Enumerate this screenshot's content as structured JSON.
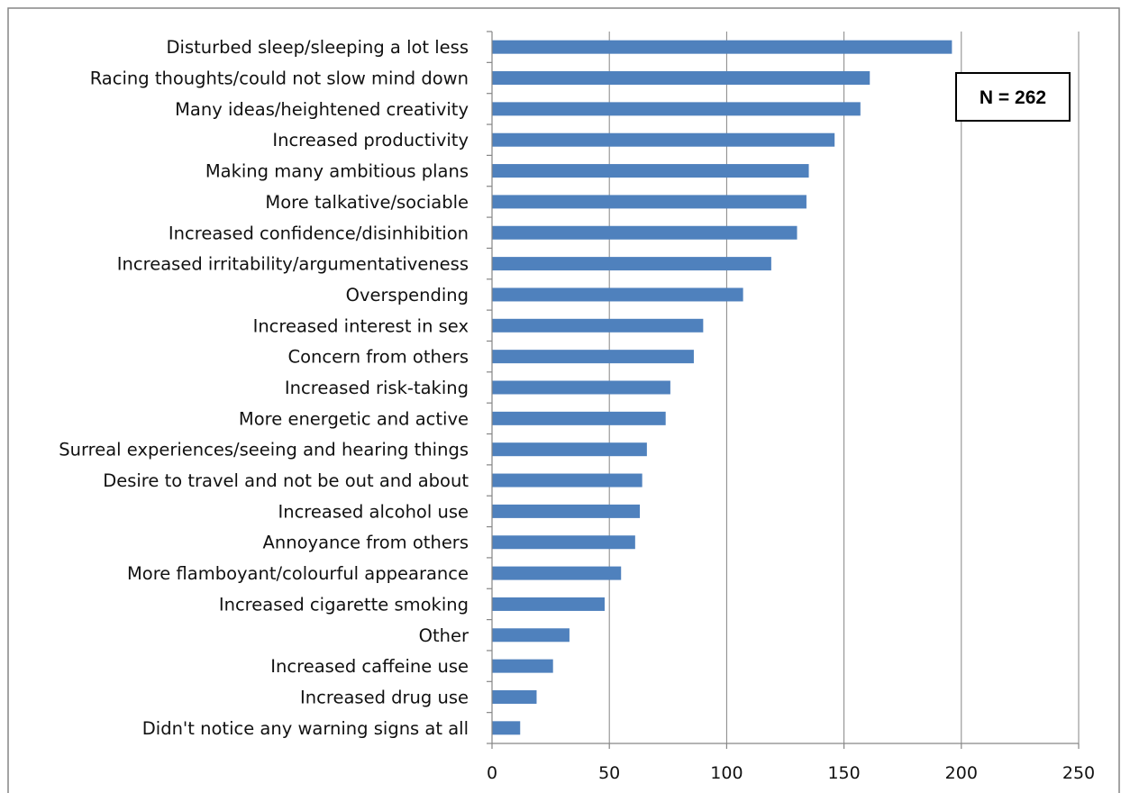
{
  "chart_data": {
    "type": "bar",
    "orientation": "horizontal",
    "categories": [
      "Disturbed sleep/sleeping a lot less",
      "Racing thoughts/could not slow mind down",
      "Many ideas/heightened creativity",
      "Increased productivity",
      "Making many ambitious plans",
      "More talkative/sociable",
      "Increased confidence/disinhibition",
      "Increased irritability/argumentativeness",
      "Overspending",
      "Increased interest in sex",
      "Concern from others",
      "Increased risk-taking",
      "More energetic and active",
      "Surreal experiences/seeing and hearing things",
      "Desire to travel and not be out and about",
      "Increased alcohol use",
      "Annoyance from others",
      "More flamboyant/colourful appearance",
      "Increased cigarette smoking",
      "Other",
      "Increased caffeine use",
      "Increased drug use",
      "Didn't notice any warning signs at all"
    ],
    "values": [
      196,
      161,
      157,
      146,
      135,
      134,
      130,
      119,
      107,
      90,
      86,
      76,
      74,
      66,
      64,
      63,
      61,
      55,
      48,
      33,
      26,
      19,
      12
    ],
    "xlim": [
      0,
      250
    ],
    "xticks": [
      0,
      50,
      100,
      150,
      200,
      250
    ],
    "title": "",
    "xlabel": "",
    "ylabel": "",
    "grid": "vertical",
    "bar_color": "#4f81bd",
    "annotation": "N = 262"
  }
}
